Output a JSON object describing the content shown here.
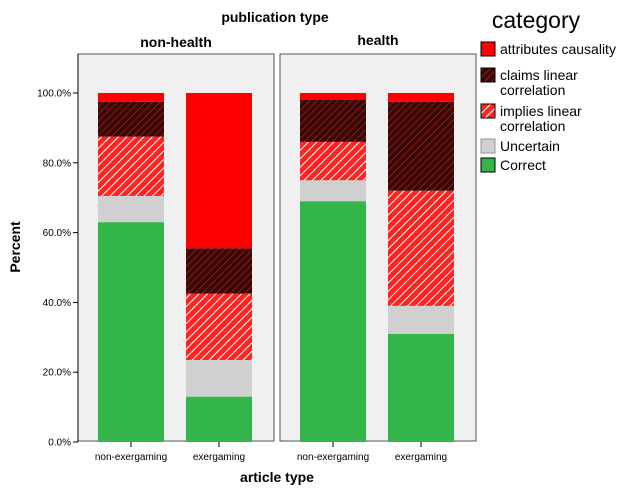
{
  "chart_data": {
    "type": "bar",
    "stacked": true,
    "title": "publication type",
    "xlabel": "article type",
    "ylabel": "Percent",
    "ylim": [
      0,
      100
    ],
    "yticks": [
      "0.0%",
      "20.0%",
      "40.0%",
      "60.0%",
      "80.0%",
      "100.0%"
    ],
    "yticks_values": [
      0,
      20,
      40,
      60,
      80,
      100
    ],
    "legend_title": "category",
    "legend_position": "right",
    "panels": [
      {
        "label": "non-health",
        "categories": [
          "non-exergaming",
          "exergaming"
        ],
        "stacks": [
          {
            "Correct": 63,
            "Uncertain": 7.5,
            "implies linear correlation": 17,
            "claims linear correlation": 10,
            "attributes causality": 2.5
          },
          {
            "Correct": 13,
            "Uncertain": 10.5,
            "implies linear correlation": 19,
            "claims linear correlation": 13,
            "attributes causality": 44.5
          }
        ]
      },
      {
        "label": "health",
        "categories": [
          "non-exergaming",
          "exergaming"
        ],
        "stacks": [
          {
            "Correct": 69,
            "Uncertain": 6,
            "implies linear correlation": 11,
            "claims linear correlation": 12,
            "attributes causality": 2
          },
          {
            "Correct": 31,
            "Uncertain": 8,
            "implies linear correlation": 33,
            "claims linear correlation": 25.5,
            "attributes causality": 2.5
          }
        ]
      }
    ],
    "series": [
      {
        "name": "attributes causality",
        "color": "#ff0000",
        "pattern": "solid"
      },
      {
        "name": "claims linear correlation",
        "name_lines": [
          "claims linear",
          "correlation"
        ],
        "color": "#3a0606",
        "pattern": "hatch-dark"
      },
      {
        "name": "implies linear correlation",
        "name_lines": [
          "implies linear",
          "correlation"
        ],
        "color": "#ff2020",
        "pattern": "hatch-light"
      },
      {
        "name": "Uncertain",
        "color": "#d0d0d0",
        "pattern": "solid"
      },
      {
        "name": "Correct",
        "color": "#33b54a",
        "pattern": "solid"
      }
    ],
    "stack_order": [
      "Correct",
      "Uncertain",
      "implies linear correlation",
      "claims linear correlation",
      "attributes causality"
    ],
    "legend_order": [
      "attributes causality",
      "claims linear correlation",
      "implies linear correlation",
      "Uncertain",
      "Correct"
    ]
  }
}
